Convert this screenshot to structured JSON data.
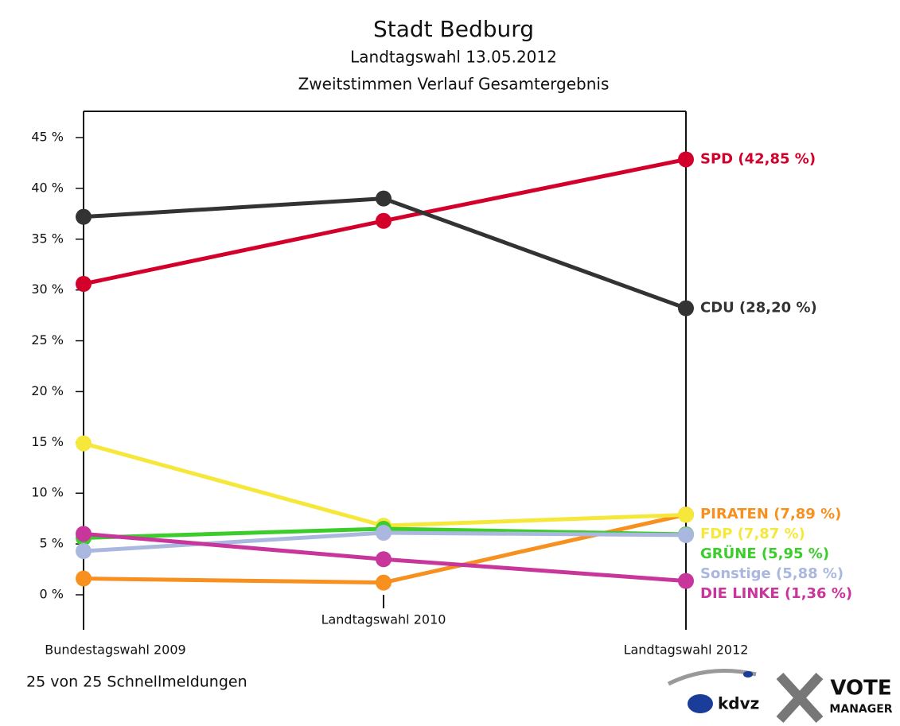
{
  "chart_data": {
    "type": "line",
    "title": "Stadt Bedburg",
    "subtitle": [
      "Landtagswahl 13.05.2012",
      "Zweitstimmen Verlauf Gesamtergebnis"
    ],
    "categories": [
      "Bundestagswahl 2009",
      "Landtagswahl 2010",
      "Landtagswahl 2012"
    ],
    "ylim": [
      0,
      45
    ],
    "yticks": [
      {
        "value": 0,
        "label": "0 %"
      },
      {
        "value": 5,
        "label": "5 %"
      },
      {
        "value": 10,
        "label": "10 %"
      },
      {
        "value": 15,
        "label": "15 %"
      },
      {
        "value": 20,
        "label": "20 %"
      },
      {
        "value": 25,
        "label": "25 %"
      },
      {
        "value": 30,
        "label": "30 %"
      },
      {
        "value": 35,
        "label": "35 %"
      },
      {
        "value": 40,
        "label": "40 %"
      },
      {
        "value": 45,
        "label": "45 %"
      }
    ],
    "series": [
      {
        "name": "SPD",
        "color": "#d3002c",
        "values": [
          30.6,
          36.8,
          42.85
        ],
        "value_labels": [
          null,
          null,
          "SPD (42,85 %)"
        ]
      },
      {
        "name": "CDU",
        "color": "#333333",
        "values": [
          37.2,
          39.0,
          28.2
        ],
        "value_labels": [
          null,
          null,
          "CDU (28,20 %)"
        ]
      },
      {
        "name": "PIRATEN",
        "color": "#f7901e",
        "values": [
          1.6,
          1.2,
          7.89
        ],
        "value_labels": [
          null,
          null,
          "PIRATEN (7,89 %)"
        ]
      },
      {
        "name": "FDP",
        "color": "#f5e83a",
        "values": [
          14.9,
          6.8,
          7.87
        ],
        "value_labels": [
          null,
          null,
          "FDP (7,87 %)"
        ]
      },
      {
        "name": "GRÜNE",
        "color": "#3ccc2c",
        "values": [
          5.6,
          6.5,
          5.95
        ],
        "value_labels": [
          null,
          null,
          "GRÜNE (5,95 %)"
        ]
      },
      {
        "name": "Sonstige",
        "color": "#aab8e0",
        "values": [
          4.3,
          6.1,
          5.88
        ],
        "value_labels": [
          null,
          null,
          "Sonstige (5,88 %)"
        ]
      },
      {
        "name": "DIE LINKE",
        "color": "#c8359b",
        "values": [
          6.0,
          3.5,
          1.36
        ],
        "value_labels": [
          null,
          null,
          "DIE LINKE (1,36 %)"
        ]
      }
    ],
    "footer": "25 von 25 Schnellmeldungen",
    "logos": [
      "kdvz",
      "VOTE",
      "MANAGER"
    ]
  }
}
